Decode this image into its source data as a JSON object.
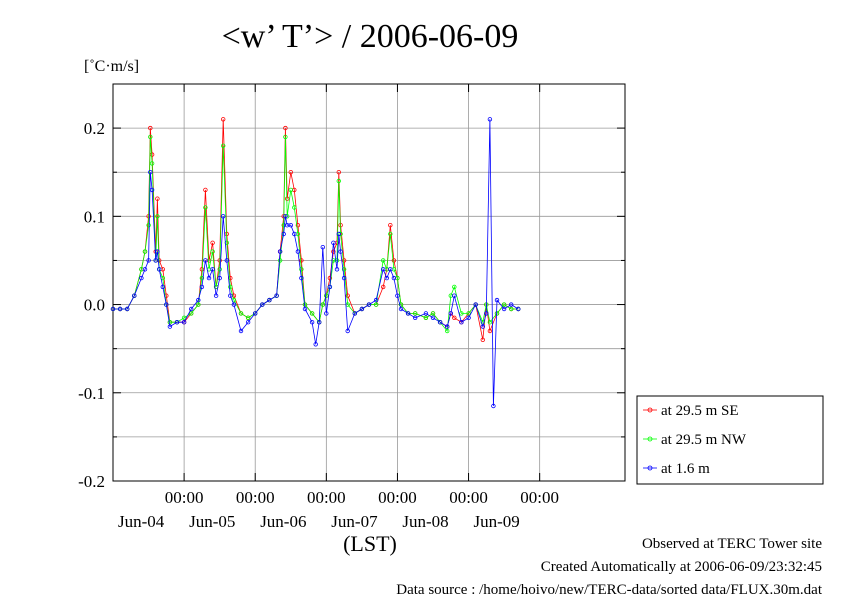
{
  "chart_data": {
    "type": "line",
    "title": "<w’ T’> / 2006-06-09",
    "ylabel": "[˚C·m/s]",
    "xlabel": "(LST)",
    "ylim": [
      -0.2,
      0.25
    ],
    "yticks": [
      "0.2",
      "0.1",
      "0.0",
      "-0.1",
      "-0.2"
    ],
    "ytick_values": [
      0.2,
      0.1,
      0.0,
      -0.1,
      -0.2
    ],
    "xlim": [
      0,
      144
    ],
    "xticks": [
      {
        "x": 20,
        "time": "00:00",
        "date": "Jun-04"
      },
      {
        "x": 40,
        "time": "00:00",
        "date": "Jun-05"
      },
      {
        "x": 60,
        "time": "00:00",
        "date": "Jun-06"
      },
      {
        "x": 80,
        "time": "00:00",
        "date": "Jun-07"
      },
      {
        "x": 100,
        "time": "00:00",
        "date": "Jun-08"
      },
      {
        "x": 120,
        "time": "00:00",
        "date": "Jun-09"
      }
    ],
    "grid": true,
    "legend_position": "bottom-right",
    "series": [
      {
        "name": "at 29.5 m SE",
        "color": "#ff0000",
        "points": [
          [
            0,
            -0.005
          ],
          [
            2,
            -0.005
          ],
          [
            4,
            -0.005
          ],
          [
            6,
            0.01
          ],
          [
            8,
            0.04
          ],
          [
            9,
            0.06
          ],
          [
            10,
            0.1
          ],
          [
            10.5,
            0.2
          ],
          [
            11,
            0.17
          ],
          [
            12,
            0.06
          ],
          [
            12.5,
            0.12
          ],
          [
            13,
            0.05
          ],
          [
            14,
            0.04
          ],
          [
            15,
            0.01
          ],
          [
            16,
            -0.02
          ],
          [
            18,
            -0.02
          ],
          [
            20,
            -0.02
          ],
          [
            22,
            -0.01
          ],
          [
            24,
            0.0
          ],
          [
            25,
            0.04
          ],
          [
            26,
            0.13
          ],
          [
            27,
            0.05
          ],
          [
            28,
            0.07
          ],
          [
            29,
            0.02
          ],
          [
            30,
            0.05
          ],
          [
            31,
            0.21
          ],
          [
            32,
            0.08
          ],
          [
            33,
            0.03
          ],
          [
            34,
            0.01
          ],
          [
            36,
            -0.01
          ],
          [
            38,
            -0.015
          ],
          [
            40,
            -0.01
          ],
          [
            42,
            0.0
          ],
          [
            44,
            0.005
          ],
          [
            46,
            0.01
          ],
          [
            47,
            0.06
          ],
          [
            48,
            0.1
          ],
          [
            48.5,
            0.2
          ],
          [
            49,
            0.12
          ],
          [
            50,
            0.15
          ],
          [
            51,
            0.13
          ],
          [
            52,
            0.09
          ],
          [
            53,
            0.05
          ],
          [
            54,
            0.0
          ],
          [
            56,
            -0.01
          ],
          [
            58,
            -0.02
          ],
          [
            59,
            0.0
          ],
          [
            60,
            0.01
          ],
          [
            61,
            0.03
          ],
          [
            62,
            0.06
          ],
          [
            63,
            0.07
          ],
          [
            63.5,
            0.15
          ],
          [
            64,
            0.09
          ],
          [
            65,
            0.05
          ],
          [
            66,
            0.01
          ],
          [
            68,
            -0.01
          ],
          [
            70,
            -0.005
          ],
          [
            72,
            0.0
          ],
          [
            74,
            0.0
          ],
          [
            76,
            0.02
          ],
          [
            77,
            0.04
          ],
          [
            78,
            0.09
          ],
          [
            79,
            0.05
          ],
          [
            80,
            0.03
          ],
          [
            81,
            0.0
          ],
          [
            83,
            -0.01
          ],
          [
            85,
            -0.01
          ],
          [
            88,
            -0.015
          ],
          [
            90,
            -0.01
          ],
          [
            92,
            -0.02
          ],
          [
            94,
            -0.025
          ],
          [
            95,
            -0.01
          ],
          [
            96,
            -0.015
          ],
          [
            98,
            -0.02
          ],
          [
            100,
            -0.01
          ],
          [
            102,
            0.0
          ],
          [
            104,
            -0.04
          ],
          [
            105,
            0.0
          ],
          [
            106,
            -0.03
          ],
          [
            108,
            -0.01
          ],
          [
            110,
            0.0
          ],
          [
            112,
            -0.005
          ],
          [
            114,
            -0.005
          ]
        ]
      },
      {
        "name": "at 29.5 m NW",
        "color": "#00ff00",
        "points": [
          [
            0,
            -0.005
          ],
          [
            2,
            -0.005
          ],
          [
            4,
            -0.005
          ],
          [
            6,
            0.01
          ],
          [
            8,
            0.04
          ],
          [
            9,
            0.06
          ],
          [
            10,
            0.09
          ],
          [
            10.5,
            0.19
          ],
          [
            11,
            0.16
          ],
          [
            12,
            0.05
          ],
          [
            12.5,
            0.1
          ],
          [
            13,
            0.04
          ],
          [
            14,
            0.03
          ],
          [
            15,
            0.0
          ],
          [
            16,
            -0.02
          ],
          [
            18,
            -0.02
          ],
          [
            20,
            -0.015
          ],
          [
            22,
            -0.01
          ],
          [
            24,
            0.0
          ],
          [
            25,
            0.03
          ],
          [
            26,
            0.11
          ],
          [
            27,
            0.04
          ],
          [
            28,
            0.06
          ],
          [
            29,
            0.02
          ],
          [
            30,
            0.04
          ],
          [
            31,
            0.18
          ],
          [
            32,
            0.07
          ],
          [
            33,
            0.02
          ],
          [
            34,
            0.005
          ],
          [
            36,
            -0.01
          ],
          [
            38,
            -0.015
          ],
          [
            40,
            -0.01
          ],
          [
            42,
            0.0
          ],
          [
            44,
            0.005
          ],
          [
            46,
            0.01
          ],
          [
            47,
            0.05
          ],
          [
            48,
            0.09
          ],
          [
            48.5,
            0.19
          ],
          [
            49,
            0.1
          ],
          [
            50,
            0.13
          ],
          [
            51,
            0.11
          ],
          [
            52,
            0.08
          ],
          [
            53,
            0.04
          ],
          [
            54,
            0.0
          ],
          [
            56,
            -0.01
          ],
          [
            58,
            -0.02
          ],
          [
            59,
            0.0
          ],
          [
            60,
            0.01
          ],
          [
            61,
            0.02
          ],
          [
            62,
            0.05
          ],
          [
            63,
            0.05
          ],
          [
            63.5,
            0.14
          ],
          [
            64,
            0.08
          ],
          [
            65,
            0.04
          ],
          [
            66,
            0.0
          ],
          [
            68,
            -0.01
          ],
          [
            70,
            -0.005
          ],
          [
            72,
            0.0
          ],
          [
            74,
            0.0
          ],
          [
            76,
            0.05
          ],
          [
            77,
            0.04
          ],
          [
            78,
            0.08
          ],
          [
            79,
            0.04
          ],
          [
            80,
            0.03
          ],
          [
            81,
            0.0
          ],
          [
            83,
            -0.01
          ],
          [
            85,
            -0.01
          ],
          [
            88,
            -0.015
          ],
          [
            90,
            -0.01
          ],
          [
            92,
            -0.02
          ],
          [
            94,
            -0.03
          ],
          [
            95,
            0.01
          ],
          [
            96,
            0.02
          ],
          [
            98,
            -0.01
          ],
          [
            100,
            -0.01
          ],
          [
            102,
            0.0
          ],
          [
            104,
            -0.02
          ],
          [
            105,
            0.0
          ],
          [
            106,
            -0.02
          ],
          [
            108,
            -0.01
          ],
          [
            110,
            0.0
          ],
          [
            112,
            -0.005
          ],
          [
            114,
            -0.005
          ]
        ]
      },
      {
        "name": "at 1.6 m",
        "color": "#0000ff",
        "points": [
          [
            0,
            -0.005
          ],
          [
            2,
            -0.005
          ],
          [
            4,
            -0.005
          ],
          [
            6,
            0.01
          ],
          [
            8,
            0.03
          ],
          [
            9,
            0.04
          ],
          [
            10,
            0.05
          ],
          [
            10.5,
            0.15
          ],
          [
            11,
            0.13
          ],
          [
            12,
            0.05
          ],
          [
            12.5,
            0.06
          ],
          [
            13,
            0.04
          ],
          [
            14,
            0.02
          ],
          [
            15,
            0.0
          ],
          [
            16,
            -0.025
          ],
          [
            18,
            -0.02
          ],
          [
            20,
            -0.02
          ],
          [
            22,
            -0.005
          ],
          [
            24,
            0.005
          ],
          [
            25,
            0.02
          ],
          [
            26,
            0.05
          ],
          [
            27,
            0.03
          ],
          [
            28,
            0.04
          ],
          [
            29,
            0.01
          ],
          [
            30,
            0.03
          ],
          [
            31,
            0.1
          ],
          [
            32,
            0.05
          ],
          [
            33,
            0.01
          ],
          [
            34,
            0.0
          ],
          [
            36,
            -0.03
          ],
          [
            38,
            -0.02
          ],
          [
            40,
            -0.01
          ],
          [
            42,
            0.0
          ],
          [
            44,
            0.005
          ],
          [
            46,
            0.01
          ],
          [
            47,
            0.06
          ],
          [
            48,
            0.08
          ],
          [
            48.5,
            0.1
          ],
          [
            49,
            0.09
          ],
          [
            50,
            0.09
          ],
          [
            51,
            0.08
          ],
          [
            52,
            0.06
          ],
          [
            53,
            0.03
          ],
          [
            54,
            -0.005
          ],
          [
            56,
            -0.02
          ],
          [
            57,
            -0.045
          ],
          [
            58,
            -0.02
          ],
          [
            59,
            0.065
          ],
          [
            60,
            -0.01
          ],
          [
            61,
            0.02
          ],
          [
            62,
            0.07
          ],
          [
            63,
            0.04
          ],
          [
            63.5,
            0.08
          ],
          [
            64,
            0.06
          ],
          [
            65,
            0.03
          ],
          [
            66,
            -0.03
          ],
          [
            68,
            -0.01
          ],
          [
            70,
            -0.005
          ],
          [
            72,
            0.0
          ],
          [
            74,
            0.005
          ],
          [
            76,
            0.04
          ],
          [
            77,
            0.03
          ],
          [
            78,
            0.04
          ],
          [
            79,
            0.03
          ],
          [
            80,
            0.01
          ],
          [
            81,
            -0.005
          ],
          [
            83,
            -0.01
          ],
          [
            85,
            -0.015
          ],
          [
            88,
            -0.01
          ],
          [
            90,
            -0.015
          ],
          [
            92,
            -0.02
          ],
          [
            94,
            -0.025
          ],
          [
            95,
            -0.01
          ],
          [
            96,
            0.01
          ],
          [
            98,
            -0.02
          ],
          [
            100,
            -0.015
          ],
          [
            102,
            0.0
          ],
          [
            104,
            -0.025
          ],
          [
            105,
            -0.01
          ],
          [
            106,
            0.21
          ],
          [
            107,
            -0.115
          ],
          [
            108,
            0.005
          ],
          [
            110,
            -0.005
          ],
          [
            112,
            0.0
          ],
          [
            114,
            -0.005
          ]
        ]
      }
    ]
  },
  "footer": {
    "observed": "Observed at TERC Tower site",
    "created": "Created Automatically at 2006-06-09/23:32:45",
    "source": "Data source : /home/hoivo/new/TERC-data/sorted  data/FLUX.30m.dat"
  }
}
